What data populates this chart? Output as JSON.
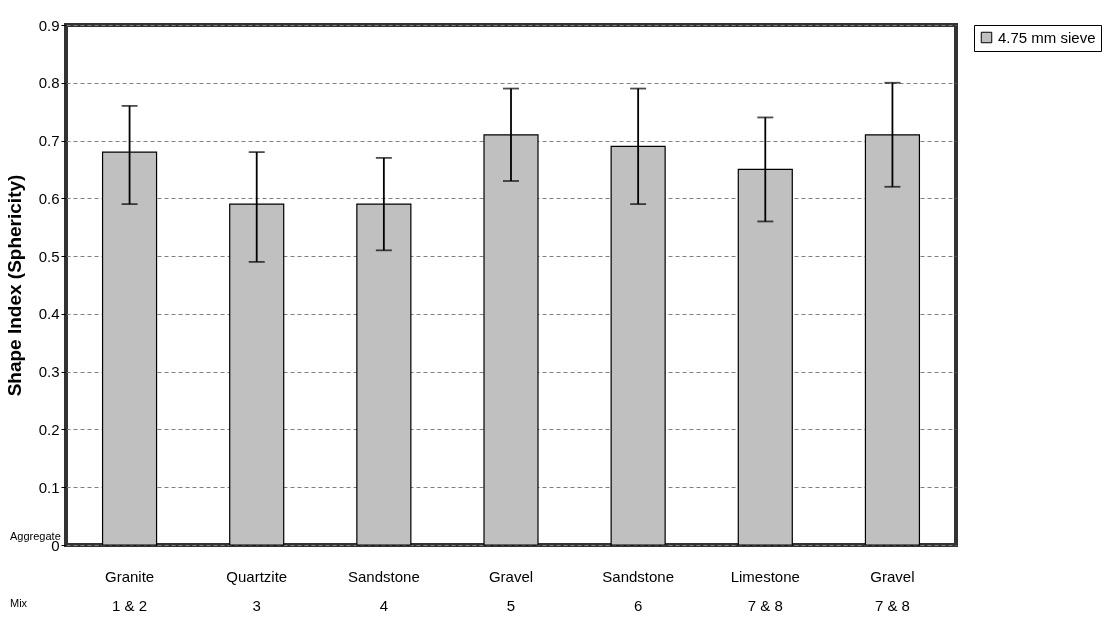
{
  "chart_data": {
    "type": "bar",
    "ylabel": "Shape Index (Sphericity)",
    "categories": [
      "Granite\n1 & 2",
      "Quartzite\n3",
      "Sandstone\n4",
      "Gravel\n5",
      "Sandstone\n6",
      "Limestone\n7 & 8",
      "Gravel\n7 & 8"
    ],
    "series": [
      {
        "name": "4.75 mm sieve",
        "color": "#c0c0c0",
        "values": [
          0.68,
          0.59,
          0.59,
          0.71,
          0.69,
          0.65,
          0.71
        ],
        "errors": [
          [
            0.59,
            0.76
          ],
          [
            0.49,
            0.68
          ],
          [
            0.51,
            0.67
          ],
          [
            0.63,
            0.79
          ],
          [
            0.59,
            0.79
          ],
          [
            0.56,
            0.74
          ],
          [
            0.62,
            0.8
          ]
        ]
      }
    ],
    "ylim": [
      0,
      0.9
    ],
    "yticks": [
      0,
      0.1,
      0.2,
      0.3,
      0.4,
      0.5,
      0.6,
      0.7,
      0.8,
      0.9
    ],
    "grid": "y",
    "legend": "right",
    "annotations": [
      "Aggregate",
      "Mix"
    ]
  }
}
